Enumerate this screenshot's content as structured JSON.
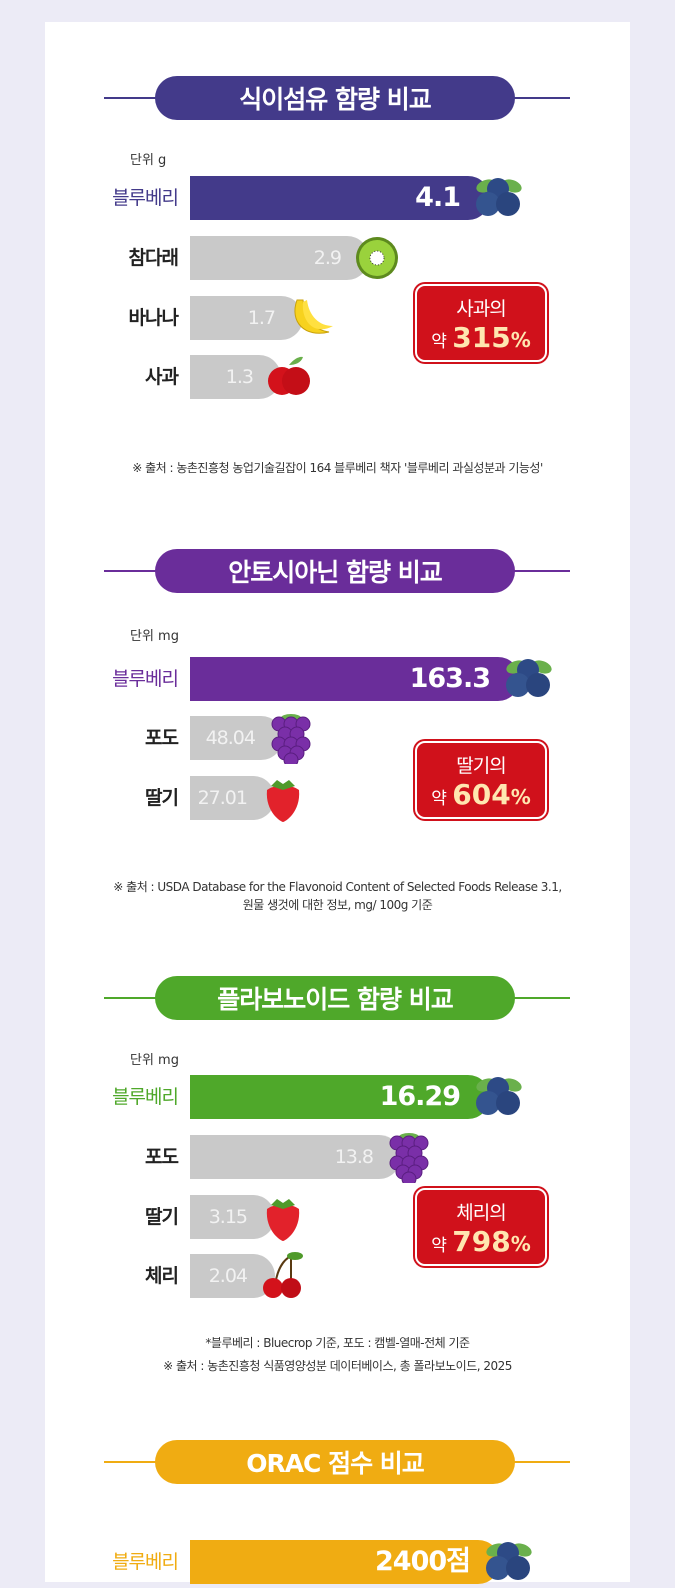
{
  "chart_data": [
    {
      "type": "bar",
      "orientation": "horizontal",
      "title": "식이섬유 함량 비교",
      "unit": "단위 g",
      "color": "#433a8a",
      "categories": [
        "블루베리",
        "참다래",
        "바나나",
        "사과"
      ],
      "values": [
        4.1,
        2.9,
        1.7,
        1.3
      ],
      "value_labels": [
        "4.1",
        "2.9",
        "1.7",
        "1.3"
      ],
      "icons": [
        "blueberry-icon",
        "kiwi-icon",
        "banana-icon",
        "apple-icon"
      ],
      "callout": {
        "line1": "사과의",
        "prefix": "약",
        "value": "315",
        "suffix": "%"
      },
      "notes": [
        "※ 출처 : 농촌진흥청 농업기술길잡이 164 블루베리 책자 '블루베리 과실성분과 기능성'"
      ]
    },
    {
      "type": "bar",
      "orientation": "horizontal",
      "title": "안토시아닌 함량 비교",
      "unit": "단위 mg",
      "color": "#6a2d9a",
      "categories": [
        "블루베리",
        "포도",
        "딸기"
      ],
      "values": [
        163.3,
        48.04,
        27.01
      ],
      "value_labels": [
        "163.3",
        "48.04",
        "27.01"
      ],
      "icons": [
        "blueberry-icon",
        "grape-icon",
        "strawberry-icon"
      ],
      "callout": {
        "line1": "딸기의",
        "prefix": "약",
        "value": "604",
        "suffix": "%"
      },
      "notes": [
        "※ 출처 : USDA Database for the Flavonoid Content of Selected Foods Release 3.1,",
        "원물 생것에 대한 정보, mg/ 100g 기준"
      ]
    },
    {
      "type": "bar",
      "orientation": "horizontal",
      "title": "플라보노이드 함량 비교",
      "unit": "단위 mg",
      "color": "#4fa82a",
      "categories": [
        "블루베리",
        "포도",
        "딸기",
        "체리"
      ],
      "values": [
        16.29,
        13.8,
        3.15,
        2.04
      ],
      "value_labels": [
        "16.29",
        "13.8",
        "3.15",
        "2.04"
      ],
      "icons": [
        "blueberry-icon",
        "grape-icon",
        "strawberry-icon",
        "cherry-icon"
      ],
      "callout": {
        "line1": "체리의",
        "prefix": "약",
        "value": "798",
        "suffix": "%"
      },
      "notes": [
        "*블루베리 : Bluecrop 기준, 포도 : 캠벨-열매-전체 기준",
        "※ 출처 : 농촌진흥청 식품영양성분 데이터베이스, 총 폴라보노이드, 2025"
      ]
    },
    {
      "type": "bar",
      "orientation": "horizontal",
      "title": "ORAC 점수 비교",
      "unit": "",
      "color": "#f0ac12",
      "categories": [
        "블루베리"
      ],
      "values": [
        2400
      ],
      "value_labels": [
        "2400점"
      ],
      "icons": [
        "blueberry-icon"
      ],
      "notes": []
    }
  ],
  "colors": {
    "bar_gray": "#c9c9c9",
    "callout_red": "#d0111b"
  }
}
